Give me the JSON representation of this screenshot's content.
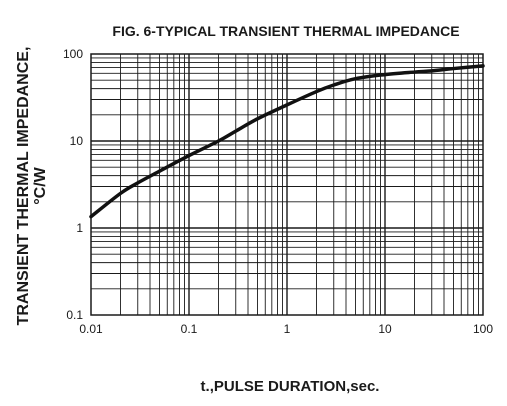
{
  "chart_data": {
    "type": "line",
    "title": "FIG. 6-TYPICAL TRANSIENT THERMAL IMPEDANCE",
    "ylabel_line1": "TRANSIENT THERMAL IMPEDANCE,",
    "ylabel_line2": "°C/W",
    "xlabel": "t.,PULSE DURATION,sec.",
    "x_scale": "log",
    "y_scale": "log",
    "xlim": [
      0.01,
      100
    ],
    "ylim": [
      0.1,
      100
    ],
    "grid": true,
    "x_ticks": [
      "0.01",
      "0.1",
      "1",
      "10",
      "100"
    ],
    "y_ticks": [
      "0.1",
      "1",
      "10",
      "100"
    ],
    "series": [
      {
        "x": [
          0.01,
          0.02,
          0.03,
          0.05,
          0.1,
          0.2,
          0.3,
          0.5,
          1,
          2,
          3,
          5,
          10,
          20,
          30,
          50,
          100
        ],
        "y": [
          1.35,
          2.5,
          3.3,
          4.5,
          6.8,
          10,
          13,
          18,
          26,
          37,
          44,
          52,
          58,
          62,
          64,
          68,
          73
        ]
      }
    ],
    "line_color": "#111111"
  }
}
